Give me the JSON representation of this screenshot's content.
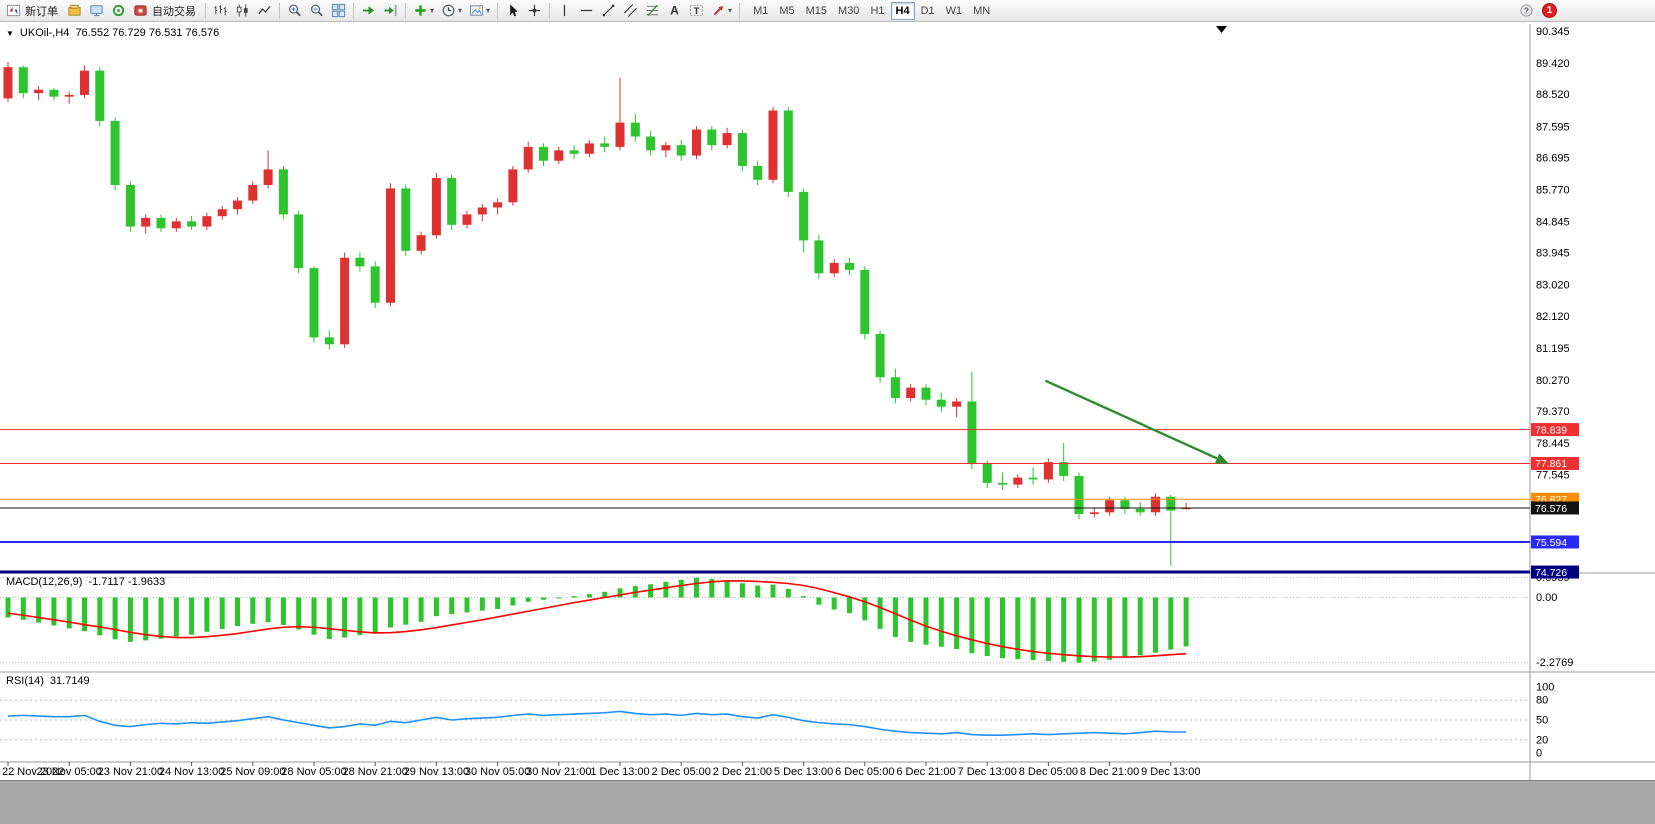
{
  "window": {
    "symbol_period": "UKOil-,H4",
    "ohlc": "76.552 76.729 76.531 76.576"
  },
  "icons": {
    "dropdown_caret": "▾",
    "chart_collapse": "▼",
    "text_tool": "A",
    "label_tool": "T",
    "help": "?"
  },
  "toolbar": {
    "new_order_label": "新订单",
    "autotrading_label": "自动交易",
    "timeframes": [
      "M1",
      "M5",
      "M15",
      "M30",
      "H1",
      "H4",
      "D1",
      "W1",
      "MN"
    ],
    "active_timeframe": "H4",
    "notification_count": "1"
  },
  "chart_data": {
    "type": "candlestick",
    "symbol": "UKOil-",
    "timeframe": "H4",
    "current_bar": {
      "open": 76.552,
      "high": 76.729,
      "low": 76.531,
      "close": 76.576
    },
    "colors": {
      "up": "#e03131",
      "down": "#2ec42e",
      "macd_signal": "#ff0000",
      "rsi": "#1e90ff",
      "arrow": "#2e8b2e"
    },
    "price_axis_labels": [
      "90.345",
      "89.420",
      "88.520",
      "87.595",
      "86.695",
      "85.770",
      "84.845",
      "83.945",
      "83.020",
      "82.120",
      "81.195",
      "80.270",
      "79.370",
      "78.445",
      "77.545"
    ],
    "time_labels": [
      "22 Nov 2022",
      "23 Nov 05:00",
      "23 Nov 21:00",
      "24 Nov 13:00",
      "25 Nov 09:00",
      "28 Nov 05:00",
      "28 Nov 21:00",
      "29 Nov 13:00",
      "30 Nov 05:00",
      "30 Nov 21:00",
      "1 Dec 13:00",
      "2 Dec 05:00",
      "2 Dec 21:00",
      "5 Dec 13:00",
      "6 Dec 05:00",
      "6 Dec 21:00",
      "7 Dec 13:00",
      "8 Dec 05:00",
      "8 Dec 21:00",
      "9 Dec 13:00"
    ],
    "candles_per_label": 4,
    "candles": [
      [
        88.4,
        89.45,
        88.3,
        89.3
      ],
      [
        89.3,
        89.35,
        88.4,
        88.55
      ],
      [
        88.55,
        88.75,
        88.35,
        88.65
      ],
      [
        88.65,
        88.7,
        88.35,
        88.45
      ],
      [
        88.45,
        88.6,
        88.25,
        88.5
      ],
      [
        88.5,
        89.35,
        88.4,
        89.2
      ],
      [
        89.2,
        89.3,
        87.6,
        87.75
      ],
      [
        87.75,
        87.85,
        85.75,
        85.9
      ],
      [
        85.9,
        86.0,
        84.55,
        84.7
      ],
      [
        84.7,
        85.05,
        84.5,
        84.95
      ],
      [
        84.95,
        85.05,
        84.55,
        84.65
      ],
      [
        84.65,
        84.95,
        84.55,
        84.85
      ],
      [
        84.85,
        85.0,
        84.6,
        84.7
      ],
      [
        84.7,
        85.1,
        84.6,
        85.0
      ],
      [
        85.0,
        85.3,
        84.9,
        85.2
      ],
      [
        85.2,
        85.55,
        85.05,
        85.45
      ],
      [
        85.45,
        86.0,
        85.35,
        85.9
      ],
      [
        85.9,
        86.9,
        85.8,
        86.35
      ],
      [
        86.35,
        86.45,
        84.9,
        85.05
      ],
      [
        85.05,
        85.15,
        83.35,
        83.5
      ],
      [
        83.5,
        83.55,
        81.35,
        81.5
      ],
      [
        81.5,
        81.7,
        81.15,
        81.3
      ],
      [
        81.3,
        83.95,
        81.2,
        83.8
      ],
      [
        83.8,
        83.95,
        83.4,
        83.55
      ],
      [
        83.55,
        83.7,
        82.35,
        82.5
      ],
      [
        82.5,
        85.95,
        82.4,
        85.8
      ],
      [
        85.8,
        85.9,
        83.85,
        84.0
      ],
      [
        84.0,
        84.55,
        83.9,
        84.45
      ],
      [
        84.45,
        86.25,
        84.35,
        86.1
      ],
      [
        86.1,
        86.2,
        84.6,
        84.75
      ],
      [
        84.75,
        85.15,
        84.65,
        85.05
      ],
      [
        85.05,
        85.35,
        84.85,
        85.25
      ],
      [
        85.25,
        85.5,
        85.05,
        85.4
      ],
      [
        85.4,
        86.45,
        85.3,
        86.35
      ],
      [
        86.35,
        87.15,
        86.25,
        87.0
      ],
      [
        87.0,
        87.1,
        86.45,
        86.6
      ],
      [
        86.6,
        87.0,
        86.5,
        86.9
      ],
      [
        86.9,
        87.05,
        86.65,
        86.8
      ],
      [
        86.8,
        87.2,
        86.7,
        87.1
      ],
      [
        87.1,
        87.3,
        86.85,
        87.0
      ],
      [
        87.0,
        89.0,
        86.9,
        87.7
      ],
      [
        87.7,
        87.95,
        87.15,
        87.3
      ],
      [
        87.3,
        87.45,
        86.75,
        86.9
      ],
      [
        86.9,
        87.15,
        86.7,
        87.05
      ],
      [
        87.05,
        87.2,
        86.6,
        86.75
      ],
      [
        86.75,
        87.6,
        86.65,
        87.5
      ],
      [
        87.5,
        87.6,
        86.9,
        87.05
      ],
      [
        87.05,
        87.55,
        86.95,
        87.4
      ],
      [
        87.4,
        87.5,
        86.3,
        86.45
      ],
      [
        86.45,
        86.6,
        85.9,
        86.05
      ],
      [
        86.05,
        88.15,
        85.95,
        88.05
      ],
      [
        88.05,
        88.15,
        85.55,
        85.7
      ],
      [
        85.7,
        85.8,
        83.95,
        84.3
      ],
      [
        84.3,
        84.45,
        83.2,
        83.35
      ],
      [
        83.35,
        83.75,
        83.25,
        83.65
      ],
      [
        83.65,
        83.8,
        83.3,
        83.45
      ],
      [
        83.45,
        83.55,
        81.45,
        81.6
      ],
      [
        81.6,
        81.7,
        80.2,
        80.35
      ],
      [
        80.35,
        80.6,
        79.6,
        79.75
      ],
      [
        79.75,
        80.15,
        79.65,
        80.05
      ],
      [
        80.05,
        80.15,
        79.55,
        79.7
      ],
      [
        79.7,
        79.9,
        79.35,
        79.5
      ],
      [
        79.5,
        79.75,
        79.2,
        79.65
      ],
      [
        79.65,
        80.5,
        77.7,
        77.85
      ],
      [
        77.85,
        77.95,
        77.15,
        77.3
      ],
      [
        77.3,
        77.6,
        77.1,
        77.25
      ],
      [
        77.25,
        77.55,
        77.15,
        77.45
      ],
      [
        77.45,
        77.75,
        77.25,
        77.4
      ],
      [
        77.4,
        78.0,
        77.3,
        77.9
      ],
      [
        77.9,
        78.45,
        77.35,
        77.5
      ],
      [
        77.5,
        77.6,
        76.25,
        76.4
      ],
      [
        76.4,
        76.6,
        76.3,
        76.45
      ],
      [
        76.45,
        76.9,
        76.35,
        76.8
      ],
      [
        76.8,
        76.9,
        76.4,
        76.55
      ],
      [
        76.55,
        76.75,
        76.35,
        76.45
      ],
      [
        76.45,
        77.0,
        76.35,
        76.9
      ],
      [
        76.9,
        76.95,
        74.9,
        76.5
      ],
      [
        76.552,
        76.729,
        76.531,
        76.576
      ]
    ],
    "hlines": [
      {
        "price": 78.839,
        "label": "78.839",
        "color": "#f03030",
        "width": 1,
        "name": "resistance-line-78839"
      },
      {
        "price": 77.861,
        "label": "77.861",
        "color": "#f03030",
        "width": 1,
        "name": "resistance-line-77861"
      },
      {
        "price": 76.827,
        "label": "76.827",
        "color": "#ff8c00",
        "width": 1,
        "name": "support-line-76827"
      },
      {
        "price": 76.576,
        "label": "76.576",
        "color": "#111111",
        "width": 1,
        "name": "bid-price-line"
      },
      {
        "price": 75.594,
        "label": "75.594",
        "color": "#2828ff",
        "width": 2,
        "name": "support-line-75594"
      },
      {
        "price": 74.726,
        "label": "74.726",
        "color": "#000080",
        "width": 3,
        "name": "support-line-74726"
      }
    ],
    "arrow": {
      "from_bar": 67.8,
      "from_price": 80.25,
      "to_bar": 79.8,
      "to_price": 77.85,
      "color": "#2e8b2e"
    },
    "macd": {
      "label": "MACD(12,26,9)",
      "values_text": "-1.7117 -1.9633",
      "main_value": -1.7117,
      "signal_value": -1.9633,
      "axis_labels": [
        "0.6939",
        "0.00",
        "-2.2769"
      ],
      "axis_values": [
        0.6939,
        0,
        -2.2769
      ],
      "hist": [
        -0.7,
        -0.78,
        -0.88,
        -0.98,
        -1.08,
        -1.18,
        -1.32,
        -1.46,
        -1.55,
        -1.5,
        -1.44,
        -1.37,
        -1.3,
        -1.2,
        -1.1,
        -1.0,
        -0.92,
        -0.86,
        -0.96,
        -1.12,
        -1.3,
        -1.45,
        -1.4,
        -1.32,
        -1.26,
        -1.05,
        -0.95,
        -0.85,
        -0.65,
        -0.58,
        -0.52,
        -0.46,
        -0.4,
        -0.28,
        -0.15,
        -0.08,
        -0.02,
        0.05,
        0.12,
        0.2,
        0.32,
        0.4,
        0.46,
        0.55,
        0.62,
        0.69,
        0.65,
        0.6,
        0.5,
        0.42,
        0.45,
        0.3,
        0.05,
        -0.25,
        -0.42,
        -0.55,
        -0.8,
        -1.1,
        -1.38,
        -1.55,
        -1.65,
        -1.72,
        -1.8,
        -1.95,
        -2.05,
        -2.12,
        -2.16,
        -2.19,
        -2.22,
        -2.25,
        -2.28,
        -2.24,
        -2.18,
        -2.1,
        -2.02,
        -1.93,
        -1.82,
        -1.7117
      ],
      "signal": [
        -0.55,
        -0.62,
        -0.7,
        -0.78,
        -0.86,
        -0.95,
        -1.03,
        -1.12,
        -1.22,
        -1.3,
        -1.36,
        -1.4,
        -1.4,
        -1.37,
        -1.32,
        -1.26,
        -1.18,
        -1.1,
        -1.04,
        -1.02,
        -1.04,
        -1.09,
        -1.15,
        -1.2,
        -1.24,
        -1.23,
        -1.19,
        -1.13,
        -1.05,
        -0.96,
        -0.87,
        -0.78,
        -0.68,
        -0.58,
        -0.48,
        -0.38,
        -0.28,
        -0.18,
        -0.09,
        0.0,
        0.09,
        0.18,
        0.26,
        0.34,
        0.42,
        0.49,
        0.55,
        0.58,
        0.58,
        0.56,
        0.53,
        0.49,
        0.42,
        0.31,
        0.17,
        0.02,
        -0.15,
        -0.35,
        -0.57,
        -0.79,
        -1.0,
        -1.18,
        -1.34,
        -1.48,
        -1.61,
        -1.72,
        -1.81,
        -1.89,
        -1.95,
        -2.0,
        -2.04,
        -2.07,
        -2.08,
        -2.08,
        -2.07,
        -2.04,
        -2.0,
        -1.9633
      ]
    },
    "rsi": {
      "label": "RSI(14)",
      "value_text": "31.7149",
      "current_value": 31.7149,
      "axis_labels": [
        "100",
        "80",
        "50",
        "20",
        "0"
      ],
      "axis_values": [
        100,
        80,
        50,
        20,
        0
      ],
      "levels": [
        80,
        50,
        20
      ],
      "values": [
        56,
        57,
        56,
        55,
        55,
        57,
        48,
        42,
        40,
        43,
        45,
        44,
        46,
        45,
        47,
        49,
        52,
        55,
        50,
        46,
        42,
        38,
        40,
        44,
        42,
        48,
        46,
        50,
        54,
        50,
        52,
        53,
        54,
        57,
        59,
        57,
        58,
        59,
        60,
        61,
        63,
        60,
        58,
        59,
        57,
        60,
        58,
        59,
        55,
        53,
        58,
        54,
        49,
        46,
        44,
        43,
        40,
        36,
        33,
        31,
        30,
        29,
        31,
        28,
        27,
        27,
        28,
        29,
        28,
        29,
        30,
        31,
        30,
        29,
        31,
        33,
        32,
        31.7149
      ]
    }
  }
}
